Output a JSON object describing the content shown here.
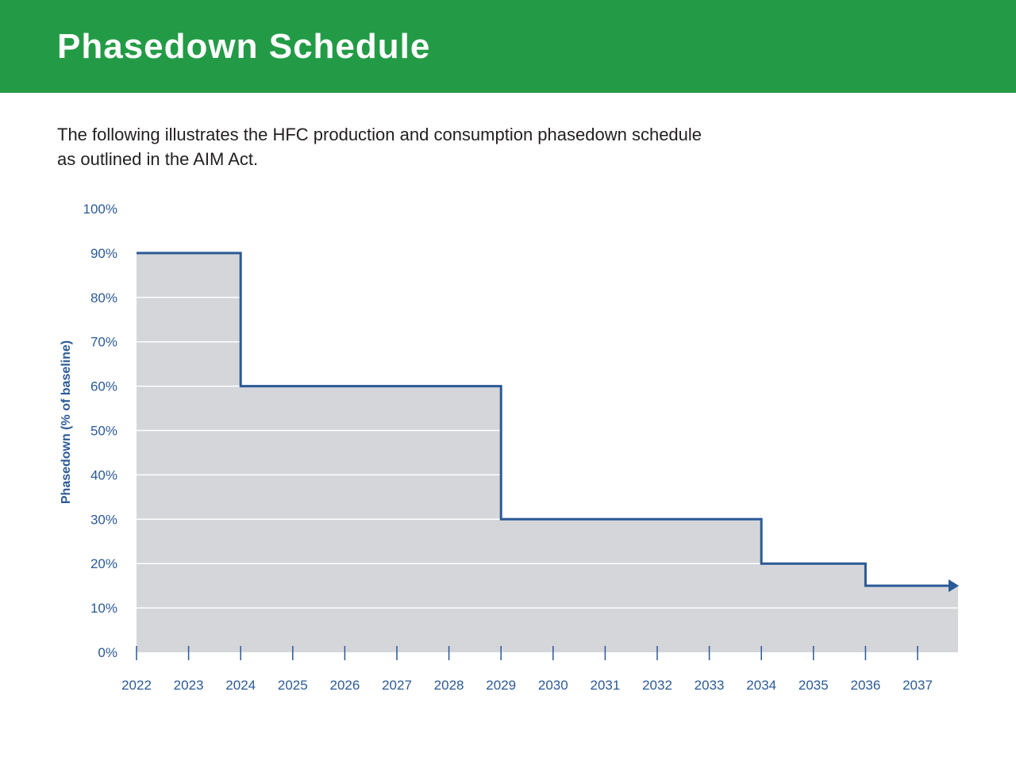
{
  "header": {
    "title": "Phasedown Schedule",
    "subtitle_line1": "The following illustrates the HFC production and consumption phasedown schedule",
    "subtitle_line2": "as outlined in the AIM Act."
  },
  "colors": {
    "banner": "#239b46",
    "line": "#2b5a96",
    "area": "#d4d6d9",
    "gridline": "#ffffff",
    "tick_text": "#2b5a96"
  },
  "chart_data": {
    "type": "area",
    "title": "",
    "xlabel": "",
    "ylabel": "Phasedown (% of baseline)",
    "x_ticks": [
      "2022",
      "2023",
      "2024",
      "2025",
      "2026",
      "2027",
      "2028",
      "2029",
      "2030",
      "2031",
      "2032",
      "2033",
      "2034",
      "2035",
      "2036",
      "2037"
    ],
    "y_ticks": [
      "0%",
      "10%",
      "20%",
      "30%",
      "40%",
      "50%",
      "60%",
      "70%",
      "80%",
      "90%",
      "100%"
    ],
    "ylim": [
      0,
      100
    ],
    "xlim": [
      2022,
      2037.7
    ],
    "grid": true,
    "step": "post",
    "series": [
      {
        "points": [
          {
            "x": 2022,
            "y": 90
          },
          {
            "x": 2024,
            "y": 60
          },
          {
            "x": 2029,
            "y": 30
          },
          {
            "x": 2034,
            "y": 20
          },
          {
            "x": 2036,
            "y": 15
          }
        ],
        "arrow_end": true
      }
    ]
  }
}
